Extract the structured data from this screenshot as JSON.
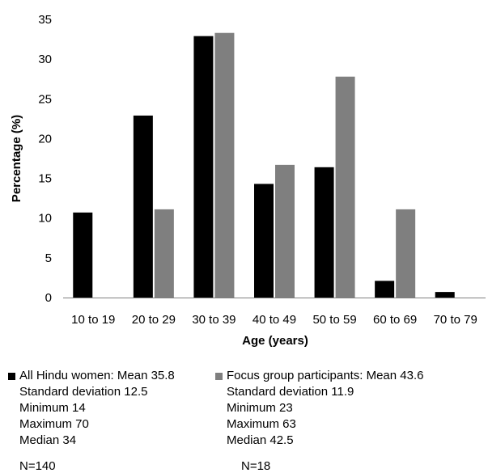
{
  "chart_data": {
    "type": "bar",
    "categories": [
      "10 to 19",
      "20 to 29",
      "30 to 39",
      "40 to 49",
      "50 to 59",
      "60 to 69",
      "70 to 79"
    ],
    "series": [
      {
        "name": "All Hindu women",
        "color": "#000000",
        "values": [
          10.7,
          22.9,
          32.9,
          14.3,
          16.4,
          2.1,
          0.7
        ]
      },
      {
        "name": "Focus group participants",
        "color": "#7f7f7f",
        "values": [
          0,
          11.1,
          33.3,
          16.7,
          27.8,
          11.1,
          0
        ]
      }
    ],
    "xlabel": "Age (years)",
    "ylabel": "Percentage (%)",
    "ylim": [
      0,
      35
    ],
    "yticks": [
      0,
      5,
      10,
      15,
      20,
      25,
      30,
      35
    ],
    "grid": false,
    "legend_position": "bottom"
  },
  "legend": {
    "group1": {
      "label": "All Hindu women:  Mean 35.8",
      "sd": "Standard deviation 12.5",
      "min": "Minimum 14",
      "max": "Maximum 70",
      "median": "Median 34",
      "n": "N=140"
    },
    "group2": {
      "label": "Focus group participants:  Mean 43.6",
      "sd": "Standard deviation 11.9",
      "min": "Minimum 23",
      "max": "Maximum 63",
      "median": "Median 42.5",
      "n": "N=18"
    }
  }
}
